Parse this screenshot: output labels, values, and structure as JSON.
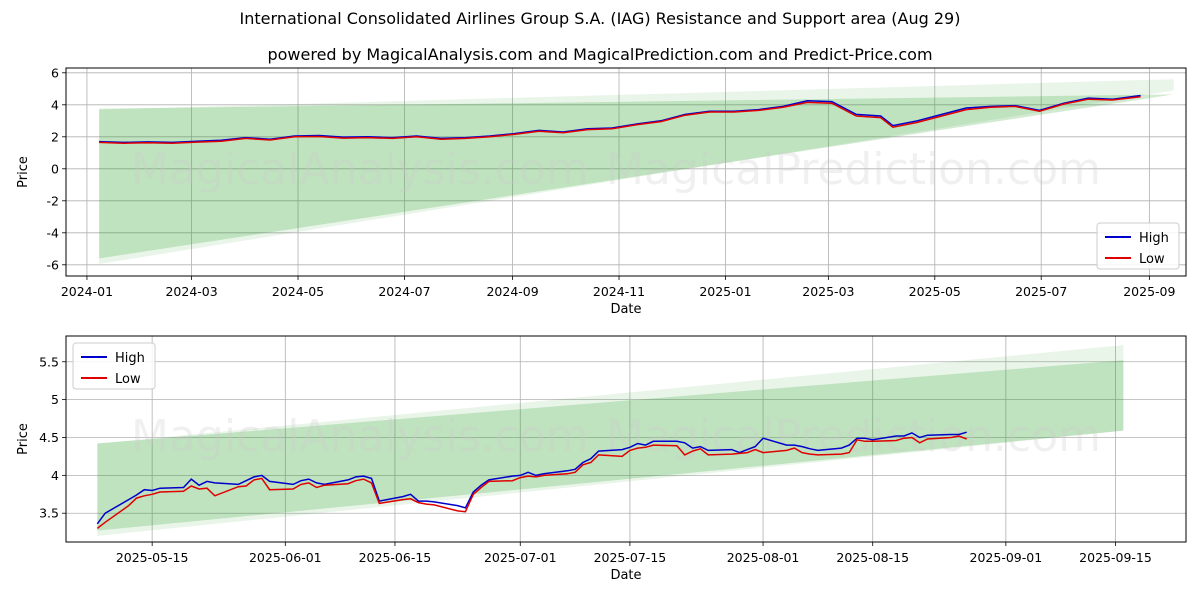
{
  "title": "International Consolidated Airlines Group S.A. (IAG) Resistance and Support area (Aug 29)",
  "subtitle": "powered by MagicalAnalysis.com and MagicalPrediction.com and Predict-Price.com",
  "watermarks": [
    "MagicalAnalysis.com",
    "MagicalPrediction.com"
  ],
  "colors": {
    "high": "#0000cc",
    "low": "#e00000",
    "band": "#2ca02c"
  },
  "chart_data": [
    {
      "type": "line",
      "xlabel": "Date",
      "ylabel": "Price",
      "xlim": [
        "2023-12-20",
        "2025-09-22"
      ],
      "ylim": [
        -6.7,
        6.3
      ],
      "xticks": [
        "2024-01",
        "2024-03",
        "2024-05",
        "2024-07",
        "2024-09",
        "2024-11",
        "2025-01",
        "2025-03",
        "2025-05",
        "2025-07",
        "2025-09"
      ],
      "yticks": [
        6,
        4,
        2,
        0,
        -2,
        -4,
        -6
      ],
      "legend": {
        "position": "lower-right",
        "entries": [
          "High",
          "Low"
        ]
      },
      "grid": true,
      "bands": [
        {
          "x": [
            "2024-01-08",
            "2025-09-15"
          ],
          "upper": [
            3.75,
            4.65
          ],
          "lower": [
            -5.6,
            4.65
          ]
        },
        {
          "x": [
            "2024-01-08",
            "2025-09-15"
          ],
          "upper": [
            3.7,
            5.6
          ],
          "lower": [
            -5.95,
            4.9
          ]
        }
      ],
      "series": [
        {
          "name": "High",
          "x": [
            "2024-01-08",
            "2024-01-22",
            "2024-02-05",
            "2024-02-19",
            "2024-03-04",
            "2024-03-18",
            "2024-04-01",
            "2024-04-15",
            "2024-04-29",
            "2024-05-13",
            "2024-05-27",
            "2024-06-10",
            "2024-06-24",
            "2024-07-08",
            "2024-07-22",
            "2024-08-05",
            "2024-08-19",
            "2024-09-02",
            "2024-09-16",
            "2024-09-30",
            "2024-10-14",
            "2024-10-28",
            "2024-11-11",
            "2024-11-25",
            "2024-12-09",
            "2024-12-23",
            "2025-01-06",
            "2025-01-20",
            "2025-02-03",
            "2025-02-17",
            "2025-03-03",
            "2025-03-17",
            "2025-03-31",
            "2025-04-07",
            "2025-04-21",
            "2025-05-05",
            "2025-05-19",
            "2025-06-02",
            "2025-06-16",
            "2025-06-30",
            "2025-07-14",
            "2025-07-28",
            "2025-08-11",
            "2025-08-27"
          ],
          "values": [
            1.7,
            1.65,
            1.68,
            1.65,
            1.72,
            1.78,
            1.95,
            1.85,
            2.05,
            2.08,
            1.98,
            2.0,
            1.95,
            2.05,
            1.9,
            1.95,
            2.05,
            2.2,
            2.4,
            2.3,
            2.5,
            2.55,
            2.8,
            3.0,
            3.4,
            3.6,
            3.6,
            3.7,
            3.9,
            4.25,
            4.2,
            3.4,
            3.3,
            2.7,
            3.0,
            3.4,
            3.8,
            3.9,
            3.95,
            3.65,
            4.1,
            4.42,
            4.35,
            4.58
          ]
        },
        {
          "name": "Low",
          "x": [
            "2024-01-08",
            "2024-01-22",
            "2024-02-05",
            "2024-02-19",
            "2024-03-04",
            "2024-03-18",
            "2024-04-01",
            "2024-04-15",
            "2024-04-29",
            "2024-05-13",
            "2024-05-27",
            "2024-06-10",
            "2024-06-24",
            "2024-07-08",
            "2024-07-22",
            "2024-08-05",
            "2024-08-19",
            "2024-09-02",
            "2024-09-16",
            "2024-09-30",
            "2024-10-14",
            "2024-10-28",
            "2024-11-11",
            "2024-11-25",
            "2024-12-09",
            "2024-12-23",
            "2025-01-06",
            "2025-01-20",
            "2025-02-03",
            "2025-02-17",
            "2025-03-03",
            "2025-03-17",
            "2025-03-31",
            "2025-04-07",
            "2025-04-21",
            "2025-05-05",
            "2025-05-19",
            "2025-06-02",
            "2025-06-16",
            "2025-06-30",
            "2025-07-14",
            "2025-07-28",
            "2025-08-11",
            "2025-08-27"
          ],
          "values": [
            1.65,
            1.6,
            1.63,
            1.6,
            1.67,
            1.72,
            1.9,
            1.8,
            2.0,
            2.02,
            1.92,
            1.95,
            1.9,
            2.0,
            1.85,
            1.9,
            2.0,
            2.15,
            2.35,
            2.25,
            2.45,
            2.5,
            2.75,
            2.95,
            3.35,
            3.55,
            3.55,
            3.65,
            3.85,
            4.15,
            4.1,
            3.3,
            3.2,
            2.6,
            2.9,
            3.3,
            3.7,
            3.85,
            3.9,
            3.6,
            4.05,
            4.35,
            4.3,
            4.5
          ]
        }
      ]
    },
    {
      "type": "line",
      "xlabel": "Date",
      "ylabel": "Price",
      "xlim": [
        "2025-05-04",
        "2025-09-24"
      ],
      "ylim": [
        3.12,
        5.84
      ],
      "xticks": [
        "2025-05-15",
        "2025-06-01",
        "2025-06-15",
        "2025-07-01",
        "2025-07-15",
        "2025-08-01",
        "2025-08-15",
        "2025-09-01",
        "2025-09-15"
      ],
      "yticks": [
        5.5,
        5.0,
        4.5,
        4.0,
        3.5
      ],
      "legend": {
        "position": "upper-left",
        "entries": [
          "High",
          "Low"
        ]
      },
      "grid": true,
      "bands": [
        {
          "x": [
            "2025-05-08",
            "2025-09-16"
          ],
          "upper": [
            4.42,
            5.52
          ],
          "lower": [
            3.27,
            4.59
          ]
        },
        {
          "x": [
            "2025-05-08",
            "2025-09-16"
          ],
          "upper": [
            4.42,
            5.72
          ],
          "lower": [
            3.2,
            4.59
          ]
        }
      ],
      "series": [
        {
          "name": "High",
          "x": [
            "2025-05-08",
            "2025-05-09",
            "2025-05-12",
            "2025-05-13",
            "2025-05-14",
            "2025-05-15",
            "2025-05-16",
            "2025-05-19",
            "2025-05-20",
            "2025-05-21",
            "2025-05-22",
            "2025-05-23",
            "2025-05-26",
            "2025-05-27",
            "2025-05-28",
            "2025-05-29",
            "2025-05-30",
            "2025-06-02",
            "2025-06-03",
            "2025-06-04",
            "2025-06-05",
            "2025-06-06",
            "2025-06-09",
            "2025-06-10",
            "2025-06-11",
            "2025-06-12",
            "2025-06-13",
            "2025-06-16",
            "2025-06-17",
            "2025-06-18",
            "2025-06-19",
            "2025-06-20",
            "2025-06-23",
            "2025-06-24",
            "2025-06-25",
            "2025-06-26",
            "2025-06-27",
            "2025-06-30",
            "2025-07-01",
            "2025-07-02",
            "2025-07-03",
            "2025-07-04",
            "2025-07-07",
            "2025-07-08",
            "2025-07-09",
            "2025-07-10",
            "2025-07-11",
            "2025-07-14",
            "2025-07-15",
            "2025-07-16",
            "2025-07-17",
            "2025-07-18",
            "2025-07-21",
            "2025-07-22",
            "2025-07-23",
            "2025-07-24",
            "2025-07-25",
            "2025-07-28",
            "2025-07-29",
            "2025-07-30",
            "2025-07-31",
            "2025-08-01",
            "2025-08-04",
            "2025-08-05",
            "2025-08-06",
            "2025-08-07",
            "2025-08-08",
            "2025-08-11",
            "2025-08-12",
            "2025-08-13",
            "2025-08-14",
            "2025-08-15",
            "2025-08-18",
            "2025-08-19",
            "2025-08-20",
            "2025-08-21",
            "2025-08-22",
            "2025-08-25",
            "2025-08-26",
            "2025-08-27"
          ],
          "values": [
            3.36,
            3.5,
            3.68,
            3.74,
            3.81,
            3.8,
            3.83,
            3.84,
            3.95,
            3.87,
            3.92,
            3.9,
            3.88,
            3.93,
            3.98,
            4.0,
            3.92,
            3.88,
            3.93,
            3.95,
            3.9,
            3.88,
            3.94,
            3.98,
            3.99,
            3.96,
            3.66,
            3.72,
            3.75,
            3.66,
            3.66,
            3.65,
            3.6,
            3.57,
            3.78,
            3.87,
            3.94,
            3.99,
            4.0,
            4.04,
            4.0,
            4.02,
            4.06,
            4.08,
            4.17,
            4.22,
            4.32,
            4.34,
            4.37,
            4.42,
            4.4,
            4.45,
            4.45,
            4.43,
            4.36,
            4.38,
            4.33,
            4.34,
            4.3,
            4.34,
            4.38,
            4.49,
            4.4,
            4.4,
            4.38,
            4.35,
            4.33,
            4.36,
            4.4,
            4.49,
            4.49,
            4.47,
            4.52,
            4.52,
            4.56,
            4.5,
            4.53,
            4.54,
            4.54,
            4.57
          ]
        },
        {
          "name": "Low",
          "x": [
            "2025-05-08",
            "2025-05-09",
            "2025-05-12",
            "2025-05-13",
            "2025-05-14",
            "2025-05-15",
            "2025-05-16",
            "2025-05-19",
            "2025-05-20",
            "2025-05-21",
            "2025-05-22",
            "2025-05-23",
            "2025-05-26",
            "2025-05-27",
            "2025-05-28",
            "2025-05-29",
            "2025-05-30",
            "2025-06-02",
            "2025-06-03",
            "2025-06-04",
            "2025-06-05",
            "2025-06-06",
            "2025-06-09",
            "2025-06-10",
            "2025-06-11",
            "2025-06-12",
            "2025-06-13",
            "2025-06-16",
            "2025-06-17",
            "2025-06-18",
            "2025-06-19",
            "2025-06-20",
            "2025-06-23",
            "2025-06-24",
            "2025-06-25",
            "2025-06-26",
            "2025-06-27",
            "2025-06-30",
            "2025-07-01",
            "2025-07-02",
            "2025-07-03",
            "2025-07-04",
            "2025-07-07",
            "2025-07-08",
            "2025-07-09",
            "2025-07-10",
            "2025-07-11",
            "2025-07-14",
            "2025-07-15",
            "2025-07-16",
            "2025-07-17",
            "2025-07-18",
            "2025-07-21",
            "2025-07-22",
            "2025-07-23",
            "2025-07-24",
            "2025-07-25",
            "2025-07-28",
            "2025-07-29",
            "2025-07-30",
            "2025-07-31",
            "2025-08-01",
            "2025-08-04",
            "2025-08-05",
            "2025-08-06",
            "2025-08-07",
            "2025-08-08",
            "2025-08-11",
            "2025-08-12",
            "2025-08-13",
            "2025-08-14",
            "2025-08-15",
            "2025-08-18",
            "2025-08-19",
            "2025-08-20",
            "2025-08-21",
            "2025-08-22",
            "2025-08-25",
            "2025-08-26",
            "2025-08-27"
          ],
          "values": [
            3.3,
            3.38,
            3.6,
            3.7,
            3.73,
            3.75,
            3.78,
            3.79,
            3.86,
            3.82,
            3.83,
            3.73,
            3.85,
            3.86,
            3.94,
            3.96,
            3.81,
            3.82,
            3.88,
            3.9,
            3.84,
            3.87,
            3.89,
            3.93,
            3.95,
            3.9,
            3.63,
            3.68,
            3.69,
            3.64,
            3.62,
            3.61,
            3.53,
            3.52,
            3.75,
            3.84,
            3.92,
            3.93,
            3.97,
            3.99,
            3.98,
            4.0,
            4.02,
            4.04,
            4.14,
            4.17,
            4.27,
            4.25,
            4.33,
            4.36,
            4.37,
            4.4,
            4.39,
            4.27,
            4.32,
            4.35,
            4.27,
            4.28,
            4.29,
            4.3,
            4.34,
            4.3,
            4.33,
            4.36,
            4.3,
            4.28,
            4.27,
            4.28,
            4.3,
            4.47,
            4.45,
            4.45,
            4.46,
            4.49,
            4.5,
            4.43,
            4.48,
            4.5,
            4.52,
            4.48
          ]
        }
      ]
    }
  ]
}
